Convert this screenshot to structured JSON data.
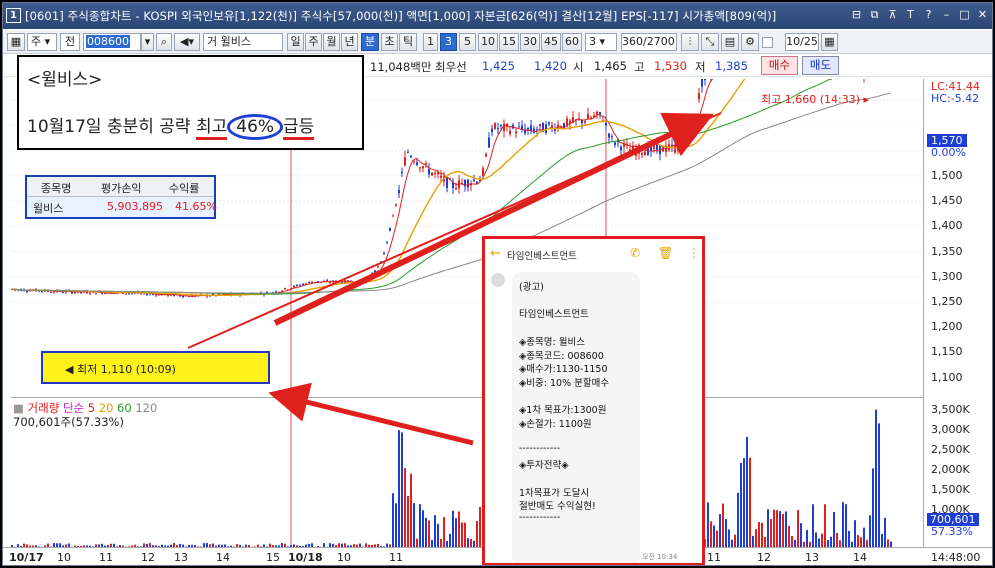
{
  "window": {
    "screen_no": "1",
    "title": "[0601] 주식종합차트 - KOSPI 외국인보유[1,122(천)] 주식수[57,000(천)] 액면[1,000] 자본금[626(억)] 결산[12월] EPS[-117] 시가총액[809(억)]"
  },
  "toolbar": {
    "market_1": "주",
    "market_2": "전",
    "code": "008600",
    "stock_name": "윌비스",
    "periods": [
      "일",
      "주",
      "월",
      "년",
      "분",
      "초",
      "틱"
    ],
    "selected_period": "분",
    "intervals": [
      "1",
      "3",
      "5",
      "10",
      "15",
      "30",
      "45",
      "60"
    ],
    "selected_interval": "3",
    "custom_interval": "3",
    "count": "360",
    "count_total": "/2700",
    "date": "10/25"
  },
  "info": {
    "amount": "11,048백만",
    "best_ask_label": "최우선",
    "best_ask": "1,425",
    "best_bid": "1,420",
    "open_label": "시",
    "open": "1,465",
    "high_label": "고",
    "high": "1,530",
    "low_label": "저",
    "low": "1,385",
    "buy": "매수",
    "sell": "매도"
  },
  "memo": {
    "stock": "<윌비스>",
    "headline_part1": "10월17일 충분히 공략  ",
    "headline_high": "최고",
    "headline_pct": "46%",
    "headline_part2": "급등"
  },
  "pnl_table": {
    "headers": [
      "종목명",
      "평가손익",
      "수익률"
    ],
    "rows": [
      [
        "윌비스",
        "5,903,895",
        "41.65%"
      ]
    ]
  },
  "annotations": {
    "high_marker": "최고 1,660 (14:33)",
    "low_marker": "최저 1,110 (10:09)"
  },
  "yaxis": {
    "lc": "LC:41.44",
    "hc": "HC:-5.42",
    "current": "1,570",
    "pct": "0.00%",
    "ticks": [
      "1,500",
      "1,450",
      "1,400",
      "1,350",
      "1,300",
      "1,250",
      "1,200",
      "1,150",
      "1,100"
    ],
    "vol_ticks": [
      "3,500K",
      "3,000K",
      "2,500K",
      "2,000K",
      "1,500K",
      "1,000K"
    ],
    "vol_current": "700,601",
    "vol_pct": "57.33%"
  },
  "volume_panel": {
    "label": "거래량",
    "ma_label": "단순",
    "ma": [
      "5",
      "20",
      "60",
      "120"
    ],
    "value": "700,601주(57.33%)"
  },
  "xaxis": {
    "labels": [
      "10/17",
      "10",
      "11",
      "12",
      "13",
      "14",
      "15",
      "10/18",
      "10",
      "11",
      "11",
      "12",
      "13",
      "14"
    ],
    "time": "14:48:00"
  },
  "phone": {
    "sender": "타임인베스트먼트",
    "lines": [
      "(광고)",
      "",
      "타임인베스트먼트",
      "",
      "◈종목명: 윌비스",
      "◈종목코드: 008600",
      "◈매수가:1130-1150",
      "◈비중: 10% 분할매수",
      "",
      "◈1차 목표가:1300원",
      "◈손절가: 1100원",
      "",
      "------------",
      "◈투자전략◈",
      "",
      "1차목표가 도달시",
      "절반매도 수익실현!",
      "------------"
    ],
    "time": "오전 10:34"
  },
  "colors": {
    "up": "#e0201c",
    "down": "#1d3fd6",
    "ma5": "#e0201c",
    "ma20": "#e6a100",
    "ma60": "#2a9a2a",
    "ma120": "#888888"
  }
}
